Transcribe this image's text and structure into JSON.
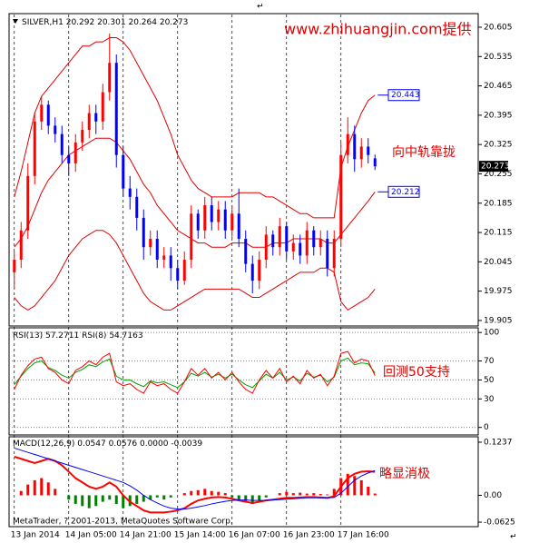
{
  "chart_data": [
    {
      "type": "candlestick",
      "title": "SILVER,H1",
      "categories": [
        "13 Jan 2014",
        null,
        null,
        null,
        null,
        null,
        null,
        null,
        "14 Jan 05:00",
        null,
        null,
        null,
        null,
        null,
        null,
        null,
        "14 Jan 21:00",
        null,
        null,
        null,
        null,
        null,
        null,
        null,
        "15 Jan 14:00",
        null,
        null,
        null,
        null,
        null,
        null,
        null,
        "16 Jan 07:00",
        null,
        null,
        null,
        null,
        null,
        null,
        null,
        "16 Jan 23:00",
        null,
        null,
        null,
        null,
        null,
        null,
        null,
        "17 Jan 16:00",
        null,
        null,
        null,
        null,
        null
      ],
      "open": [
        20.02,
        20.05,
        20.12,
        20.25,
        20.38,
        20.42,
        20.37,
        20.35,
        20.3,
        20.28,
        20.33,
        20.36,
        20.4,
        20.38,
        20.45,
        20.52,
        20.3,
        20.22,
        20.2,
        20.15,
        20.08,
        20.1,
        20.05,
        20.06,
        20.03,
        20.0,
        20.05,
        20.16,
        20.12,
        20.18,
        20.14,
        20.17,
        20.12,
        20.16,
        20.1,
        20.04,
        20.0,
        20.05,
        20.11,
        20.08,
        20.13,
        20.07,
        20.09,
        20.06,
        20.12,
        20.08,
        20.1,
        20.03,
        20.1,
        20.3,
        20.35,
        20.29,
        20.32,
        20.292
      ],
      "high": [
        20.07,
        20.14,
        20.28,
        20.4,
        20.44,
        20.43,
        20.39,
        20.37,
        20.32,
        20.35,
        20.38,
        20.42,
        20.42,
        20.47,
        20.59,
        20.54,
        20.32,
        20.25,
        20.22,
        20.17,
        20.12,
        20.12,
        20.08,
        20.08,
        20.05,
        20.07,
        20.18,
        20.17,
        20.2,
        20.2,
        20.19,
        20.19,
        20.18,
        20.22,
        20.12,
        20.06,
        20.07,
        20.13,
        20.12,
        20.15,
        20.14,
        20.11,
        20.11,
        20.14,
        20.13,
        20.12,
        20.12,
        20.12,
        20.33,
        20.39,
        20.37,
        20.34,
        20.34,
        20.301
      ],
      "low": [
        19.98,
        20.03,
        20.1,
        20.23,
        20.36,
        20.35,
        20.33,
        20.28,
        20.25,
        20.26,
        20.31,
        20.34,
        20.35,
        20.36,
        20.43,
        20.27,
        20.2,
        20.17,
        20.12,
        20.05,
        20.06,
        20.03,
        20.03,
        20.0,
        19.98,
        19.99,
        20.03,
        20.1,
        20.1,
        20.12,
        20.12,
        20.1,
        20.1,
        20.08,
        20.02,
        19.97,
        19.98,
        20.03,
        20.06,
        20.06,
        20.05,
        20.05,
        20.04,
        20.04,
        20.06,
        20.06,
        20.01,
        20.01,
        20.08,
        20.28,
        20.26,
        20.27,
        20.28,
        20.264
      ],
      "close": [
        20.05,
        20.12,
        20.25,
        20.38,
        20.42,
        20.37,
        20.35,
        20.3,
        20.28,
        20.33,
        20.36,
        20.4,
        20.38,
        20.45,
        20.52,
        20.3,
        20.22,
        20.2,
        20.15,
        20.08,
        20.1,
        20.05,
        20.06,
        20.03,
        20.0,
        20.05,
        20.16,
        20.12,
        20.18,
        20.14,
        20.17,
        20.12,
        20.16,
        20.1,
        20.04,
        20.0,
        20.05,
        20.11,
        20.08,
        20.13,
        20.07,
        20.09,
        20.06,
        20.12,
        20.08,
        20.1,
        20.03,
        20.1,
        20.3,
        20.35,
        20.29,
        20.32,
        20.3,
        20.273
      ],
      "up_color": "#ff0000",
      "down_color": "#0000ff",
      "bands": [
        {
          "color": "#e00000",
          "end_label": true,
          "values": [
            20.2,
            20.26,
            20.33,
            20.4,
            20.44,
            20.46,
            20.48,
            20.5,
            20.52,
            20.54,
            20.56,
            20.56,
            20.57,
            20.57,
            20.58,
            20.58,
            20.57,
            20.55,
            20.52,
            20.49,
            20.46,
            20.43,
            20.39,
            20.35,
            20.3,
            20.27,
            20.24,
            20.22,
            20.21,
            20.2,
            20.2,
            20.2,
            20.2,
            20.21,
            20.21,
            20.21,
            20.21,
            20.2,
            20.2,
            20.19,
            20.18,
            20.17,
            20.16,
            20.16,
            20.15,
            20.15,
            20.15,
            20.15,
            20.27,
            20.32,
            20.36,
            20.4,
            20.43,
            20.443
          ]
        },
        {
          "color": "#e00000",
          "end_label": true,
          "values": [
            20.08,
            20.1,
            20.13,
            20.17,
            20.21,
            20.24,
            20.26,
            20.28,
            20.3,
            20.31,
            20.32,
            20.33,
            20.34,
            20.34,
            20.34,
            20.33,
            20.31,
            20.29,
            20.26,
            20.23,
            20.21,
            20.18,
            20.16,
            20.14,
            20.12,
            20.11,
            20.1,
            20.09,
            20.09,
            20.08,
            20.08,
            20.08,
            20.09,
            20.09,
            20.09,
            20.08,
            20.08,
            20.08,
            20.09,
            20.09,
            20.09,
            20.1,
            20.1,
            20.1,
            20.1,
            20.1,
            20.09,
            20.09,
            20.11,
            20.13,
            20.15,
            20.17,
            20.19,
            20.212
          ]
        },
        {
          "color": "#e00000",
          "end_label": false,
          "values": [
            19.96,
            19.94,
            19.93,
            19.94,
            19.96,
            19.98,
            20.0,
            20.03,
            20.06,
            20.08,
            20.1,
            20.11,
            20.12,
            20.12,
            20.11,
            20.09,
            20.06,
            20.03,
            20.0,
            19.97,
            19.95,
            19.94,
            19.93,
            19.93,
            19.94,
            19.95,
            19.96,
            19.97,
            19.98,
            19.98,
            19.98,
            19.98,
            19.98,
            19.98,
            19.97,
            19.96,
            19.96,
            19.97,
            19.98,
            19.99,
            20.0,
            20.01,
            20.02,
            20.02,
            20.02,
            20.03,
            20.03,
            20.02,
            19.95,
            19.93,
            19.94,
            19.95,
            19.96,
            19.98
          ]
        }
      ],
      "ylim": [
        19.894,
        20.631
      ],
      "yticks": [
        20.605,
        20.535,
        20.465,
        20.395,
        20.325,
        20.255,
        20.185,
        20.115,
        20.045,
        19.975,
        19.905
      ],
      "watermark": "www.zhihuangjin.com提供",
      "annotations": [
        "向中轨靠拢"
      ]
    },
    {
      "type": "line",
      "series": [
        {
          "name": "RSI(13)",
          "color": "#00a000",
          "values": [
            45,
            54,
            62,
            68,
            70,
            63,
            60,
            55,
            52,
            58,
            61,
            66,
            64,
            69,
            72,
            54,
            50,
            50,
            46,
            43,
            49,
            47,
            48,
            45,
            42,
            48,
            57,
            54,
            58,
            53,
            56,
            52,
            56,
            50,
            45,
            42,
            49,
            56,
            52,
            58,
            50,
            53,
            49,
            57,
            53,
            55,
            48,
            53,
            70,
            73,
            66,
            68,
            67,
            57.2711
          ]
        },
        {
          "name": "RSI(8)",
          "color": "#ff0000",
          "values": [
            40,
            55,
            65,
            72,
            74,
            62,
            58,
            50,
            46,
            60,
            64,
            70,
            66,
            74,
            78,
            48,
            44,
            46,
            40,
            36,
            48,
            44,
            46,
            40,
            36,
            48,
            62,
            55,
            62,
            52,
            58,
            50,
            58,
            48,
            40,
            36,
            50,
            60,
            52,
            62,
            48,
            54,
            46,
            60,
            52,
            56,
            44,
            54,
            78,
            80,
            68,
            72,
            70,
            54.7163
          ]
        }
      ],
      "ylim": [
        -7,
        104
      ],
      "yticks": [
        100,
        70,
        50,
        30,
        0
      ],
      "grid": true,
      "annotations": [
        "回测50支持"
      ]
    },
    {
      "type": "combo",
      "title": "MACD(12,26,9)",
      "series": [
        {
          "color": "#ff0000",
          "values": [
            0.09,
            0.085,
            0.08,
            0.075,
            0.08,
            0.085,
            0.08,
            0.07,
            0.055,
            0.04,
            0.03,
            0.02,
            0.015,
            0.02,
            0.03,
            0.02,
            0.0,
            -0.015,
            -0.025,
            -0.035,
            -0.04,
            -0.04,
            -0.04,
            -0.038,
            -0.035,
            -0.03,
            -0.02,
            -0.012,
            -0.008,
            -0.005,
            -0.004,
            -0.005,
            -0.008,
            -0.012,
            -0.015,
            -0.018,
            -0.015,
            -0.012,
            -0.01,
            -0.008,
            -0.006,
            -0.006,
            -0.005,
            -0.004,
            -0.004,
            -0.005,
            -0.006,
            -0.002,
            0.02,
            0.04,
            0.05,
            0.055,
            0.056,
            0.0547
          ]
        },
        {
          "color": "#0000ff",
          "values": [
            0.11,
            0.105,
            0.1,
            0.095,
            0.09,
            0.085,
            0.08,
            0.075,
            0.07,
            0.065,
            0.06,
            0.055,
            0.05,
            0.045,
            0.04,
            0.035,
            0.03,
            0.022,
            0.012,
            0.0,
            -0.01,
            -0.018,
            -0.025,
            -0.03,
            -0.032,
            -0.032,
            -0.03,
            -0.027,
            -0.024,
            -0.02,
            -0.017,
            -0.014,
            -0.012,
            -0.011,
            -0.011,
            -0.012,
            -0.012,
            -0.012,
            -0.011,
            -0.01,
            -0.009,
            -0.008,
            -0.007,
            -0.006,
            -0.006,
            -0.006,
            -0.006,
            -0.005,
            0.005,
            0.02,
            0.035,
            0.045,
            0.052,
            0.0576
          ]
        }
      ],
      "header_values": [
        {
          "value": 0,
          "label": "0.0000"
        },
        -0.0039
      ],
      "histogram": {
        "up_color": "#ff0000",
        "down_color": "#008000",
        "values": [
          0.0,
          0.01,
          0.025,
          0.035,
          0.04,
          0.03,
          0.015,
          0.0,
          -0.01,
          -0.02,
          -0.025,
          -0.03,
          -0.025,
          -0.015,
          -0.01,
          -0.02,
          -0.03,
          -0.025,
          -0.02,
          -0.015,
          -0.01,
          -0.005,
          -0.01,
          -0.005,
          0.0,
          0.005,
          0.01,
          0.012,
          0.015,
          0.01,
          0.008,
          0.005,
          -0.005,
          -0.01,
          -0.015,
          -0.02,
          -0.012,
          -0.005,
          0.0,
          0.005,
          0.008,
          0.005,
          0.006,
          0.004,
          0.005,
          0.003,
          0.002,
          0.015,
          0.04,
          0.05,
          0.045,
          0.035,
          0.02,
          0.004
        ]
      },
      "ylim": [
        -0.073,
        0.1363
      ],
      "yticks": [
        0.1237,
        {
          "value": 0,
          "label": "0.00"
        },
        -0.0625
      ],
      "footer": "MetaTrader, ? 2001-2013, MetaQuotes Software Corp.",
      "annotations": [
        "略显消极"
      ]
    }
  ],
  "page_marks": [
    "↵",
    "↵"
  ]
}
